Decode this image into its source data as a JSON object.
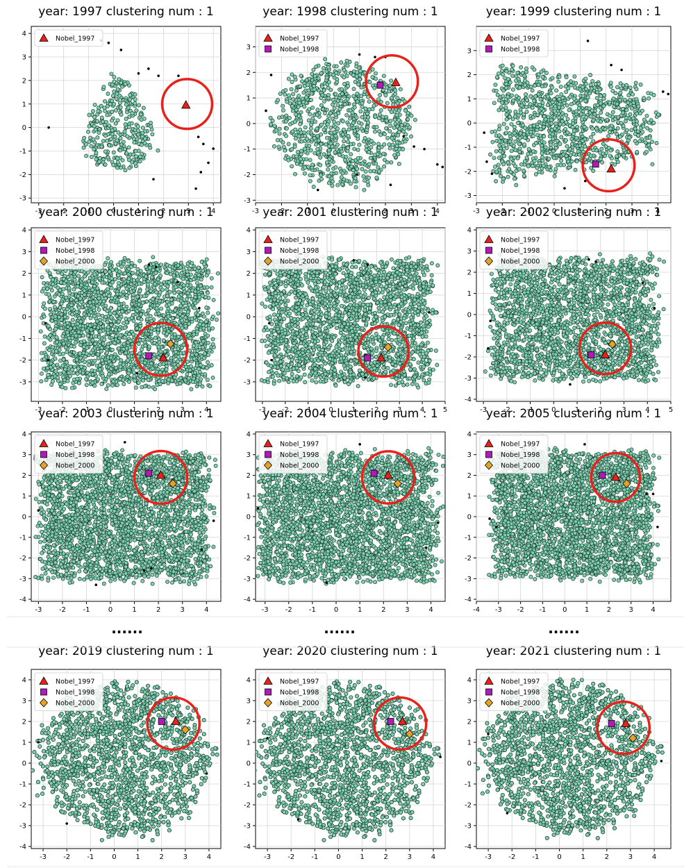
{
  "legend_labels": [
    "Nobel_1997",
    "Nobel_1998",
    "Nobel_2000"
  ],
  "marker_colors": {
    "cluster_fill": "#7fd1b0",
    "cluster_edge": "#1b3a30",
    "nobel_1997": "#e8221a",
    "nobel_1998": "#b21ab8",
    "nobel_2000": "#e3a22a",
    "circle": "#e8221a",
    "outlier": "#000000"
  },
  "ellipsis_text": "......",
  "chart_data": [
    {
      "type": "scatter",
      "title": "year:  1997 clustering num : 1",
      "xticks": [
        -3,
        -2,
        -1,
        0,
        1,
        2,
        3,
        4
      ],
      "yticks": [
        -3,
        -2,
        -1,
        0,
        1,
        2,
        3,
        4
      ],
      "xlim": [
        -3.3,
        4.3
      ],
      "ylim": [
        -3.2,
        4.3
      ],
      "cloud": {
        "cx": 0.2,
        "cy": 0.2,
        "rx": 1.9,
        "ry": 2.0,
        "count": 320,
        "shape": "triangle"
      },
      "nobel": {
        "Nobel_1997": [
          2.9,
          0.95
        ]
      },
      "circle": {
        "cx": 2.95,
        "cy": 1.0,
        "r": 1.0
      },
      "outliers": [
        [
          -0.5,
          3.7
        ],
        [
          -0.2,
          3.6
        ],
        [
          0.3,
          3.3
        ],
        [
          1.4,
          2.5
        ],
        [
          1.8,
          2.2
        ],
        [
          2.6,
          2.2
        ],
        [
          1.0,
          2.3
        ],
        [
          3.4,
          -0.4
        ],
        [
          3.6,
          -0.7
        ],
        [
          4.0,
          -0.9
        ],
        [
          3.8,
          -1.5
        ],
        [
          3.5,
          -1.9
        ],
        [
          3.3,
          -2.6
        ],
        [
          -2.6,
          0.0
        ],
        [
          1.6,
          -2.2
        ]
      ]
    },
    {
      "type": "scatter",
      "title": "year:  1998 clustering num : 1",
      "xticks": [
        -3,
        -2,
        -1,
        0,
        1,
        2,
        3,
        4
      ],
      "yticks": [
        -3,
        -2,
        -1,
        0,
        1,
        2,
        3
      ],
      "xlim": [
        -3.0,
        4.3
      ],
      "ylim": [
        -3.1,
        3.8
      ],
      "cloud": {
        "cx": 0.3,
        "cy": 0.0,
        "rx": 2.6,
        "ry": 2.4,
        "count": 900,
        "shape": "blob"
      },
      "nobel": {
        "Nobel_1997": [
          2.4,
          1.6
        ],
        "Nobel_1998": [
          1.8,
          1.5
        ]
      },
      "circle": {
        "cx": 2.25,
        "cy": 1.65,
        "r": 1.0
      },
      "outliers": [
        [
          -2.4,
          1.9
        ],
        [
          -2.6,
          0.5
        ],
        [
          1.0,
          2.7
        ],
        [
          2.0,
          2.6
        ],
        [
          1.6,
          2.6
        ],
        [
          2.7,
          -0.5
        ],
        [
          3.1,
          -0.9
        ],
        [
          3.5,
          -1.0
        ],
        [
          4.0,
          -1.6
        ],
        [
          4.2,
          -1.7
        ],
        [
          0.9,
          -2.0
        ],
        [
          2.2,
          -2.4
        ],
        [
          -0.6,
          -2.6
        ]
      ]
    },
    {
      "type": "scatter",
      "title": "year:  1999 clustering num : 1",
      "xticks": [
        -3,
        -2,
        -1,
        0,
        1,
        2,
        3,
        4
      ],
      "yticks": [
        -3,
        -2,
        -1,
        0,
        1,
        2,
        3
      ],
      "xlim": [
        -3.0,
        4.5
      ],
      "ylim": [
        -3.3,
        4.0
      ],
      "cloud": {
        "cx": 0.8,
        "cy": 0.0,
        "rx": 3.0,
        "ry": 2.4,
        "count": 1100,
        "shape": "fan"
      },
      "nobel": {
        "Nobel_1997": [
          2.2,
          -1.9
        ],
        "Nobel_1998": [
          1.6,
          -1.7
        ]
      },
      "circle": {
        "cx": 2.1,
        "cy": -1.75,
        "r": 1.0
      },
      "outliers": [
        [
          1.3,
          3.4
        ],
        [
          2.2,
          2.4
        ],
        [
          2.6,
          2.2
        ],
        [
          4.2,
          1.3
        ],
        [
          4.4,
          1.2
        ],
        [
          -2.7,
          -0.4
        ],
        [
          -2.6,
          -1.6
        ],
        [
          -2.4,
          -2.1
        ],
        [
          0.4,
          -2.7
        ],
        [
          1.2,
          -2.4
        ]
      ]
    },
    {
      "type": "scatter",
      "title": "year:  2000 clustering num : 1",
      "xticks": [
        -3,
        -2,
        -1,
        0,
        1,
        2,
        3,
        4
      ],
      "yticks": [
        -3,
        -2,
        -1,
        0,
        1,
        2,
        3,
        4
      ],
      "xlim": [
        -3.3,
        4.6
      ],
      "ylim": [
        -3.9,
        4.1
      ],
      "cloud": {
        "cx": 0.7,
        "cy": -0.3,
        "rx": 3.4,
        "ry": 2.8,
        "count": 2200,
        "shape": "rect"
      },
      "nobel": {
        "Nobel_1997": [
          2.2,
          -1.9
        ],
        "Nobel_1998": [
          1.6,
          -1.8
        ],
        "Nobel_2000": [
          2.5,
          -1.25
        ]
      },
      "circle": {
        "cx": 2.1,
        "cy": -1.5,
        "r": 1.1
      },
      "outliers": [
        [
          -1.7,
          3.0
        ],
        [
          -1.3,
          3.3
        ],
        [
          1.6,
          2.4
        ],
        [
          1.9,
          2.3
        ],
        [
          2.8,
          1.6
        ],
        [
          -2.7,
          -0.3
        ],
        [
          -2.6,
          -2.0
        ],
        [
          3.7,
          0.4
        ],
        [
          1.1,
          -2.6
        ]
      ]
    },
    {
      "type": "scatter",
      "title": "year:  2001 clustering num : 1",
      "xticks": [
        -3,
        -2,
        -1,
        0,
        1,
        2,
        3,
        4,
        5
      ],
      "yticks": [
        -3,
        -2,
        -1,
        0,
        1,
        2,
        3,
        4
      ],
      "xlim": [
        -3.3,
        5.0
      ],
      "ylim": [
        -3.9,
        4.1
      ],
      "cloud": {
        "cx": 0.8,
        "cy": -0.2,
        "rx": 3.5,
        "ry": 2.8,
        "count": 2200,
        "shape": "rect"
      },
      "nobel": {
        "Nobel_1997": [
          2.2,
          -1.9
        ],
        "Nobel_1998": [
          1.6,
          -1.9
        ],
        "Nobel_2000": [
          2.5,
          -1.4
        ]
      },
      "circle": {
        "cx": 2.3,
        "cy": -1.6,
        "r": 1.1
      },
      "outliers": [
        [
          -2.7,
          -0.3
        ],
        [
          1.0,
          2.6
        ],
        [
          1.6,
          2.4
        ],
        [
          4.3,
          0.2
        ],
        [
          -2.6,
          -2.0
        ],
        [
          1.5,
          -2.8
        ]
      ]
    },
    {
      "type": "scatter",
      "title": "year:  2002 clustering num : 1",
      "xticks": [
        -3,
        -2,
        -1,
        0,
        1,
        2,
        3,
        4,
        5
      ],
      "yticks": [
        -4,
        -3,
        -2,
        -1,
        0,
        1,
        2,
        3,
        4
      ],
      "xlim": [
        -3.3,
        5.0
      ],
      "ylim": [
        -4.1,
        4.1
      ],
      "cloud": {
        "cx": 0.9,
        "cy": -0.2,
        "rx": 3.4,
        "ry": 2.8,
        "count": 2200,
        "shape": "rect"
      },
      "nobel": {
        "Nobel_1997": [
          2.2,
          -1.9
        ],
        "Nobel_1998": [
          1.6,
          -1.9
        ],
        "Nobel_2000": [
          2.5,
          -1.4
        ]
      },
      "circle": {
        "cx": 2.2,
        "cy": -1.6,
        "r": 1.1
      },
      "outliers": [
        [
          1.5,
          2.6
        ],
        [
          1.8,
          2.5
        ],
        [
          3.8,
          1.5
        ],
        [
          4.3,
          0.3
        ],
        [
          -2.8,
          -1.6
        ],
        [
          -2.7,
          -0.3
        ],
        [
          0.7,
          -3.3
        ]
      ]
    },
    {
      "type": "scatter",
      "title": "year:  2003 clustering num : 1",
      "xticks": [
        -3,
        -2,
        -1,
        0,
        1,
        2,
        3,
        4
      ],
      "yticks": [
        -4,
        -3,
        -2,
        -1,
        0,
        1,
        2,
        3,
        4
      ],
      "xlim": [
        -3.3,
        4.6
      ],
      "ylim": [
        -4.1,
        4.1
      ],
      "cloud": {
        "cx": 0.6,
        "cy": 0.0,
        "rx": 3.4,
        "ry": 3.0,
        "count": 2800,
        "shape": "rect"
      },
      "nobel": {
        "Nobel_1997": [
          2.1,
          2.0
        ],
        "Nobel_1998": [
          1.6,
          2.1
        ],
        "Nobel_2000": [
          2.6,
          1.6
        ]
      },
      "circle": {
        "cx": 2.1,
        "cy": 1.9,
        "r": 1.1
      },
      "outliers": [
        [
          0.6,
          3.6
        ],
        [
          -3.0,
          0.3
        ],
        [
          4.3,
          -0.2
        ],
        [
          3.8,
          -1.6
        ],
        [
          1.4,
          -2.6
        ],
        [
          1.7,
          -2.5
        ],
        [
          -0.6,
          -3.3
        ]
      ]
    },
    {
      "type": "scatter",
      "title": "year:  2004 clustering num : 1",
      "xticks": [
        -3,
        -2,
        -1,
        0,
        1,
        2,
        3,
        4
      ],
      "yticks": [
        -4,
        -3,
        -2,
        -1,
        0,
        1,
        2,
        3,
        4
      ],
      "xlim": [
        -3.4,
        4.6
      ],
      "ylim": [
        -4.1,
        4.1
      ],
      "cloud": {
        "cx": 0.5,
        "cy": 0.0,
        "rx": 3.6,
        "ry": 3.0,
        "count": 2800,
        "shape": "rect"
      },
      "nobel": {
        "Nobel_1997": [
          2.2,
          2.0
        ],
        "Nobel_1998": [
          1.6,
          2.1
        ],
        "Nobel_2000": [
          2.6,
          1.6
        ]
      },
      "circle": {
        "cx": 2.2,
        "cy": 1.9,
        "r": 1.1
      },
      "outliers": [
        [
          1.0,
          3.5
        ],
        [
          -3.3,
          0.4
        ],
        [
          4.3,
          -0.3
        ],
        [
          3.8,
          -1.5
        ],
        [
          -0.4,
          -3.2
        ]
      ]
    },
    {
      "type": "scatter",
      "title": "year:  2005 clustering num : 1",
      "xticks": [
        -4,
        -3,
        -2,
        -1,
        0,
        1,
        2,
        3,
        4
      ],
      "yticks": [
        -4,
        -3,
        -2,
        -1,
        0,
        1,
        2,
        3,
        4
      ],
      "xlim": [
        -4.0,
        4.8
      ],
      "ylim": [
        -4.1,
        4.1
      ],
      "cloud": {
        "cx": 0.4,
        "cy": 0.1,
        "rx": 3.5,
        "ry": 3.0,
        "count": 2800,
        "shape": "rect"
      },
      "nobel": {
        "Nobel_1997": [
          2.3,
          1.9
        ],
        "Nobel_1998": [
          1.7,
          2.0
        ],
        "Nobel_2000": [
          2.8,
          1.6
        ]
      },
      "circle": {
        "cx": 2.3,
        "cy": 1.9,
        "r": 1.1
      },
      "outliers": [
        [
          0.9,
          3.5
        ],
        [
          -3.4,
          -0.1
        ],
        [
          -3.1,
          -0.5
        ],
        [
          4.2,
          -0.5
        ],
        [
          3.7,
          1.1
        ],
        [
          4.0,
          1.1
        ]
      ]
    },
    {
      "type": "scatter",
      "title": "year:  2019 clustering num : 1",
      "xticks": [
        -3,
        -2,
        -1,
        0,
        1,
        2,
        3,
        4
      ],
      "yticks": [
        -4,
        -3,
        -2,
        -1,
        0,
        1,
        2,
        3,
        4
      ],
      "xlim": [
        -3.5,
        4.5
      ],
      "ylim": [
        -4.1,
        4.5
      ],
      "cloud": {
        "cx": 0.4,
        "cy": 0.2,
        "rx": 3.6,
        "ry": 3.6,
        "count": 3200,
        "shape": "round"
      },
      "nobel": {
        "Nobel_1997": [
          2.6,
          2.0
        ],
        "Nobel_1998": [
          2.0,
          2.0
        ],
        "Nobel_2000": [
          3.0,
          1.6
        ]
      },
      "circle": {
        "cx": 2.5,
        "cy": 1.9,
        "r": 1.1
      },
      "outliers": [
        [
          -3.2,
          1.0
        ],
        [
          -2.0,
          -2.9
        ],
        [
          3.9,
          -0.5
        ]
      ]
    },
    {
      "type": "scatter",
      "title": "year:  2020 clustering num : 1",
      "xticks": [
        -3,
        -2,
        -1,
        0,
        1,
        2,
        3,
        4
      ],
      "yticks": [
        -4,
        -3,
        -2,
        -1,
        0,
        1,
        2,
        3,
        4
      ],
      "xlim": [
        -3.5,
        4.5
      ],
      "ylim": [
        -4.1,
        4.5
      ],
      "cloud": {
        "cx": 0.3,
        "cy": 0.2,
        "rx": 3.6,
        "ry": 3.6,
        "count": 3200,
        "shape": "round"
      },
      "nobel": {
        "Nobel_1997": [
          2.7,
          2.0
        ],
        "Nobel_1998": [
          2.2,
          2.0
        ],
        "Nobel_2000": [
          3.0,
          1.4
        ]
      },
      "circle": {
        "cx": 2.6,
        "cy": 1.9,
        "r": 1.1
      },
      "outliers": [
        [
          -3.0,
          1.2
        ],
        [
          4.3,
          0.3
        ],
        [
          -1.7,
          -2.7
        ]
      ]
    },
    {
      "type": "scatter",
      "title": "year:  2021 clustering num : 1",
      "xticks": [
        -3,
        -2,
        -1,
        0,
        1,
        2,
        3,
        4
      ],
      "yticks": [
        -4,
        -3,
        -2,
        -1,
        0,
        1,
        2,
        3,
        4
      ],
      "xlim": [
        -3.5,
        4.7
      ],
      "ylim": [
        -4.1,
        4.5
      ],
      "cloud": {
        "cx": 0.4,
        "cy": 0.3,
        "rx": 3.6,
        "ry": 3.6,
        "count": 3200,
        "shape": "round"
      },
      "nobel": {
        "Nobel_1997": [
          2.8,
          1.9
        ],
        "Nobel_1998": [
          2.2,
          1.9
        ],
        "Nobel_2000": [
          3.1,
          1.2
        ]
      },
      "circle": {
        "cx": 2.7,
        "cy": 1.7,
        "r": 1.1
      },
      "outliers": [
        [
          -3.0,
          1.4
        ],
        [
          4.3,
          0.1
        ],
        [
          -2.2,
          -2.4
        ]
      ]
    }
  ]
}
